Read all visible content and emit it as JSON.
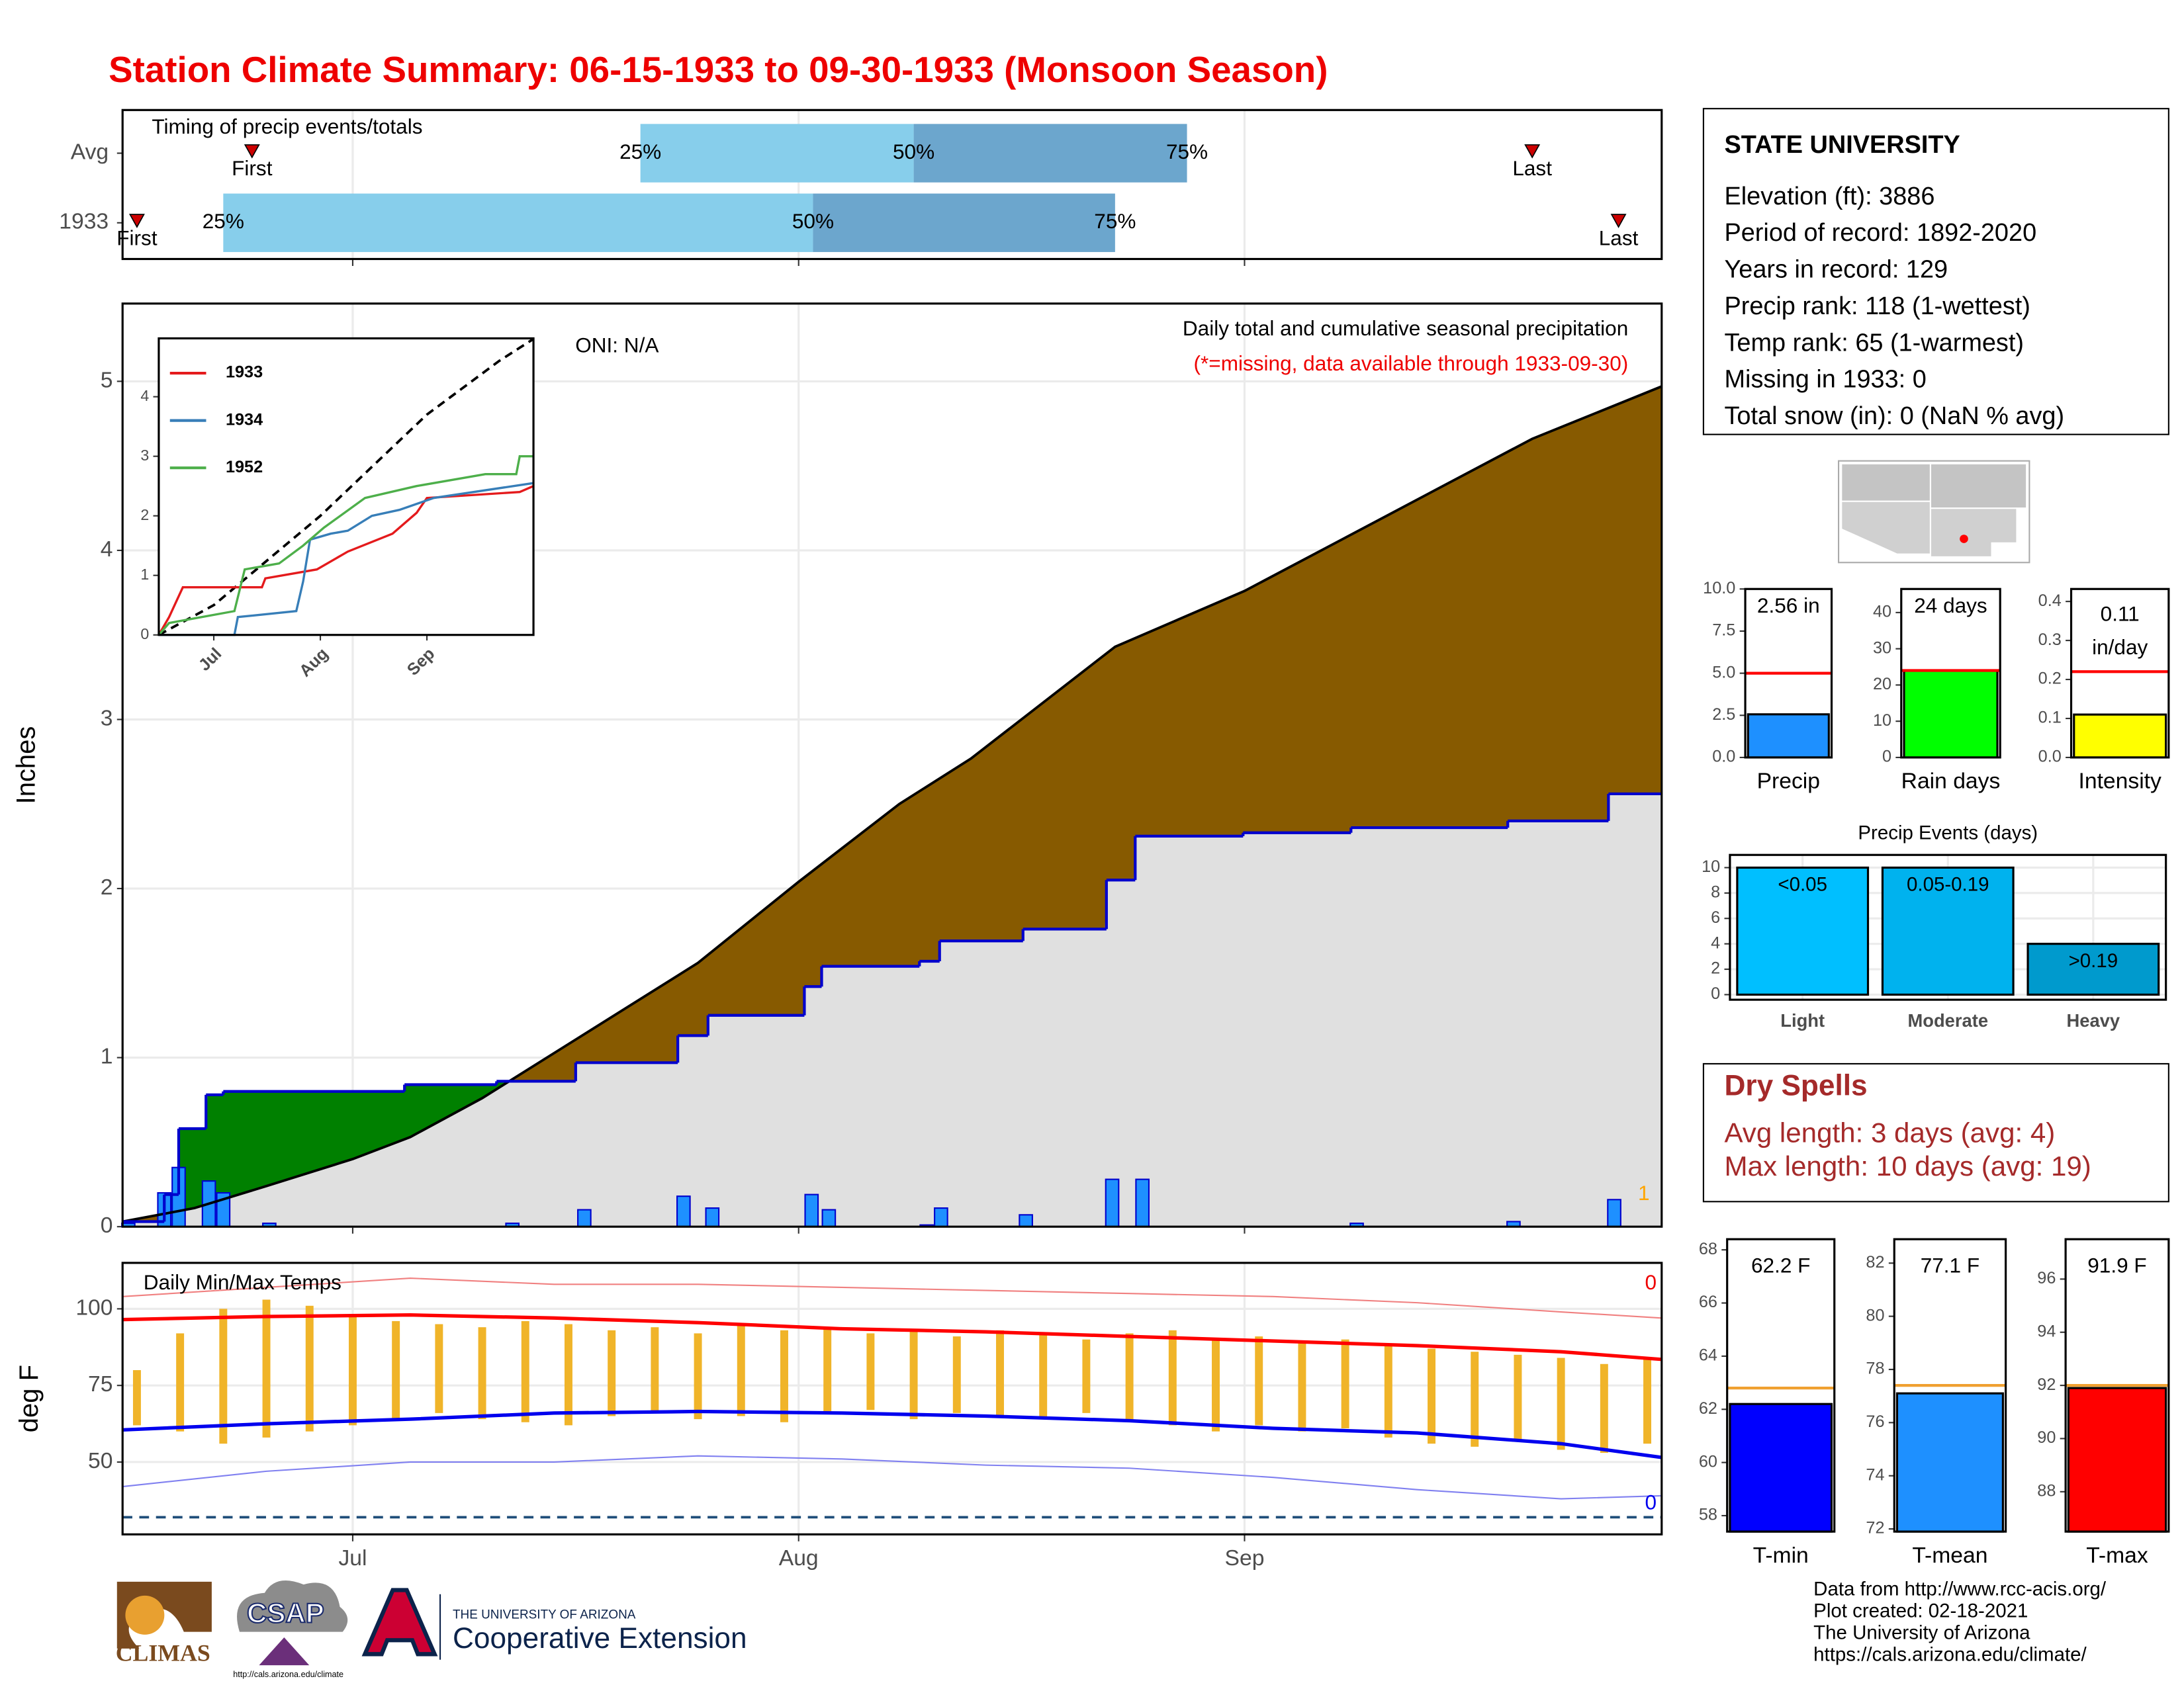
{
  "header": {
    "title": "Station Climate Summary: 06-15-1933 to 09-30-1933 (Monsoon Season)"
  },
  "station": {
    "title": "STATE UNIVERSITY",
    "lines": [
      "Elevation (ft): 3886",
      "Period of record: 1892-2020",
      "Years in record: 129",
      "Precip rank: 118 (1-wettest)",
      "Temp rank: 65 (1-warmest)",
      "Missing in 1933: 0",
      "Total snow (in): 0 (NaN % avg)"
    ]
  },
  "dry_spells": {
    "title": "Dry Spells",
    "lines": [
      "Avg length: 3 days (avg: 4)",
      "Max length: 10 days (avg: 19)"
    ]
  },
  "footer": {
    "lines": [
      "Data from http://www.rcc-acis.org/",
      "Plot created: 02-18-2021",
      "The University of Arizona",
      "https://cals.arizona.edu/climate/"
    ]
  },
  "logos": {
    "climas": "CLIMAS",
    "csap": "CSAP",
    "csap_url": "http://cals.arizona.edu/climate",
    "ua_small": "THE UNIVERSITY OF ARIZONA",
    "ua_large": "Cooperative Extension"
  },
  "chart_data": [
    {
      "type": "timing",
      "title": "Timing of precip events/totals",
      "xlim": [
        0,
        107
      ],
      "xticks": [
        16,
        47,
        78
      ],
      "marker_labels": {
        "first": "First",
        "last": "Last",
        "q25": "25%",
        "q50": "50%",
        "q75": "75%"
      },
      "rows": [
        {
          "label": "Avg",
          "first": 9,
          "q25": 36,
          "q50": 55,
          "q75": 74,
          "last": 98
        },
        {
          "label": "1933",
          "first": 1,
          "q25": 7,
          "q50": 48,
          "q75": 69,
          "last": 104
        }
      ],
      "colors": {
        "lower": "#87ceeb",
        "upper": "#6ca6cd",
        "marker": "#cc0000"
      }
    },
    {
      "type": "cumulative",
      "title": "Daily total and cumulative seasonal precipitation",
      "subtitle": "(*=missing, data available through 1933-09-30)",
      "annotation": "ONI: N/A",
      "missing_count": "1",
      "y_label": "Inches",
      "xlim": [
        0,
        107
      ],
      "xticks": [
        16,
        47,
        78
      ],
      "ylim": [
        0,
        5.46
      ],
      "yticks": [
        0,
        1,
        2,
        3,
        4,
        5
      ],
      "grid": true,
      "average": {
        "x": [
          0,
          5,
          10,
          16,
          20,
          25,
          31,
          40,
          47,
          54,
          59,
          69,
          78,
          88,
          98,
          107
        ],
        "values": [
          0.03,
          0.11,
          0.24,
          0.4,
          0.53,
          0.76,
          1.08,
          1.56,
          2.04,
          2.5,
          2.77,
          3.43,
          3.76,
          4.21,
          4.66,
          4.97
        ],
        "color": "#000000"
      },
      "observed": {
        "x": [
          0,
          2.9,
          3.9,
          5.8,
          7.0,
          19.6,
          26.0,
          31.5,
          38.6,
          40.7,
          47.4,
          48.6,
          55.4,
          56.8,
          62.6,
          68.4,
          70.4,
          77.9,
          85.4,
          96.3,
          103.3
        ],
        "values": [
          0.03,
          0.19,
          0.58,
          0.78,
          0.8,
          0.84,
          0.86,
          0.97,
          1.13,
          1.25,
          1.42,
          1.54,
          1.57,
          1.69,
          1.76,
          2.05,
          2.31,
          2.33,
          2.36,
          2.4,
          2.56
        ],
        "color": "#0000cd"
      },
      "daily": {
        "x": [
          0.4,
          2.9,
          3.9,
          6.0,
          7.0,
          10.2,
          27.1,
          32.1,
          39,
          41,
          47.9,
          49.1,
          55.9,
          56.9,
          62.8,
          68.8,
          70.9,
          85.8,
          96.7,
          103.7
        ],
        "values": [
          0.02,
          0.2,
          0.35,
          0.27,
          0.2,
          0.02,
          0.02,
          0.1,
          0.18,
          0.11,
          0.19,
          0.1,
          0.01,
          0.11,
          0.07,
          0.28,
          0.28,
          0.02,
          0.03,
          0.16
        ],
        "color": "#1e90ff"
      },
      "fill_colors": {
        "above": "#008000",
        "below": "#875a00",
        "base": "#e0e0e0"
      }
    },
    {
      "type": "line",
      "xlim": [
        0,
        109
      ],
      "xticks": [
        {
          "value": 16,
          "label": "Jul"
        },
        {
          "value": 47,
          "label": "Aug"
        },
        {
          "value": 78,
          "label": "Sep"
        }
      ],
      "ylim": [
        0,
        4.98
      ],
      "yticks": [
        0,
        1,
        2,
        3,
        4
      ],
      "legend": "top-left",
      "series": [
        {
          "name": "1933",
          "color": "#e41a1c",
          "x": [
            0,
            3,
            5,
            7,
            30,
            31,
            46,
            55,
            68,
            75,
            78,
            105,
            109
          ],
          "values": [
            0,
            0.3,
            0.55,
            0.8,
            0.8,
            0.95,
            1.1,
            1.4,
            1.7,
            2.05,
            2.3,
            2.4,
            2.5
          ]
        },
        {
          "name": "1934",
          "color": "#377eb8",
          "x": [
            0,
            22,
            23,
            40,
            42,
            44,
            50,
            55,
            62,
            70,
            80,
            109
          ],
          "values": [
            0,
            0,
            0.3,
            0.4,
            0.9,
            1.6,
            1.7,
            1.75,
            2.0,
            2.1,
            2.3,
            2.55
          ]
        },
        {
          "name": "1952",
          "color": "#4daf4a",
          "x": [
            0,
            3,
            22,
            25,
            35,
            42,
            48,
            60,
            75,
            95,
            104,
            105,
            109
          ],
          "values": [
            0,
            0.2,
            0.4,
            1.1,
            1.2,
            1.5,
            1.8,
            2.3,
            2.5,
            2.7,
            2.7,
            3.0,
            3.0
          ]
        }
      ],
      "average": {
        "x": [
          0,
          16,
          47,
          78,
          99,
          109
        ],
        "values": [
          0,
          0.5,
          2.0,
          3.7,
          4.6,
          4.97
        ],
        "color": "#000000",
        "dash": true
      }
    },
    {
      "type": "temperature",
      "title": "Daily Min/Max Temps",
      "y_label": "deg F",
      "xlim": [
        0,
        107
      ],
      "xticks": [
        {
          "value": 16,
          "label": "Jul"
        },
        {
          "value": 47,
          "label": "Aug"
        },
        {
          "value": 78,
          "label": "Sep"
        }
      ],
      "ylim": [
        26.4,
        115
      ],
      "yticks": [
        50,
        75,
        100
      ],
      "grid": true,
      "high_count": "0",
      "low_count": "0",
      "freeze_line": 32,
      "freeze_color": "#1f4e79",
      "lines": [
        {
          "x": [
            0,
            10,
            20,
            30,
            40,
            50,
            60,
            70,
            80,
            90,
            100,
            107
          ],
          "values": [
            104,
            107,
            110,
            108,
            108,
            107,
            106,
            105,
            104,
            102,
            99,
            97
          ],
          "color": "#f08080",
          "width": 1
        },
        {
          "x": [
            0,
            10,
            20,
            30,
            40,
            50,
            60,
            70,
            80,
            90,
            100,
            107
          ],
          "values": [
            42,
            47,
            50,
            50,
            52,
            51,
            49,
            48,
            45,
            41,
            38,
            39
          ],
          "color": "#8080f0",
          "width": 1
        },
        {
          "x": [
            0,
            10,
            20,
            30,
            40,
            50,
            60,
            70,
            80,
            90,
            100,
            107
          ],
          "values": [
            96.5,
            97.5,
            98,
            97,
            95.5,
            93.5,
            92.5,
            91,
            89.5,
            88,
            86,
            83.5
          ],
          "color": "#ff0000",
          "width": 2.5
        },
        {
          "x": [
            0,
            10,
            20,
            30,
            40,
            50,
            60,
            70,
            80,
            90,
            100,
            107
          ],
          "values": [
            60.5,
            62.5,
            64,
            66,
            66.5,
            66,
            65,
            63.5,
            61,
            59.5,
            56,
            51.5
          ],
          "color": "#0000ee",
          "width": 2.5
        }
      ],
      "daily": {
        "x": [
          1,
          4,
          7,
          10,
          13,
          16,
          19,
          22,
          25,
          28,
          31,
          34,
          37,
          40,
          43,
          46,
          49,
          52,
          55,
          58,
          61,
          64,
          67,
          70,
          73,
          76,
          79,
          82,
          85,
          88,
          91,
          94,
          97,
          100,
          103,
          106
        ],
        "low": [
          62,
          60,
          56,
          58,
          60,
          62,
          64,
          66,
          64,
          63,
          62,
          65,
          66,
          64,
          65,
          63,
          66,
          67,
          64,
          66,
          65,
          64,
          66,
          63,
          62,
          60,
          62,
          60,
          61,
          58,
          56,
          55,
          57,
          54,
          53,
          56
        ],
        "high": [
          80,
          92,
          100,
          103,
          101,
          98,
          96,
          95,
          94,
          96,
          95,
          93,
          94,
          92,
          95,
          93,
          94,
          92,
          93,
          91,
          93,
          92,
          90,
          92,
          93,
          90,
          91,
          89,
          90,
          88,
          87,
          86,
          85,
          84,
          82,
          84
        ],
        "color": "#f0b429"
      }
    },
    {
      "type": "summary-bar",
      "category": "Precip",
      "value": 2.56,
      "value_label": "2.56 in",
      "average": 5.0,
      "average_color": "#ff0000",
      "color": "#1e90ff",
      "ylim": [
        0,
        10
      ],
      "yticks": [
        {
          "value": 0,
          "label": "0.0"
        },
        2.5,
        {
          "value": 5,
          "label": "5.0"
        },
        7.5,
        {
          "value": 10,
          "label": "10.0"
        }
      ]
    },
    {
      "type": "summary-bar",
      "category": "Rain days",
      "value": 24,
      "value_label": "24 days",
      "average": 24,
      "average_color": "#ff0000",
      "color": "#00ff00",
      "ylim": [
        0,
        46.5
      ],
      "yticks": [
        0,
        10,
        20,
        30,
        40
      ]
    },
    {
      "type": "summary-bar",
      "category": "Intensity",
      "value": 0.11,
      "value_label": "0.11",
      "unit_label": "in/day",
      "average": 0.22,
      "average_color": "#ff0000",
      "color": "#ffff00",
      "ylim": [
        0,
        0.432
      ],
      "yticks": [
        {
          "value": 0,
          "label": "0.0"
        },
        0.1,
        0.2,
        0.3,
        0.4
      ]
    },
    {
      "type": "bar",
      "title": "Precip Events (days)",
      "categories": [
        "Light",
        "Moderate",
        "Heavy"
      ],
      "bin_labels": [
        "<0.05",
        "0.05-0.19",
        ">0.19"
      ],
      "values": [
        10,
        10,
        4
      ],
      "colors": [
        "#00bfff",
        "#00b2ee",
        "#009acd"
      ],
      "ylim": [
        -0.4,
        11
      ],
      "yticks": [
        0,
        2,
        4,
        6,
        8,
        10
      ],
      "grid": true
    },
    {
      "type": "summary-bar",
      "category": "T-min",
      "value": 62.2,
      "value_label": "62.2 F",
      "average": 62.8,
      "average_color": "#f0a030",
      "color": "#0000ff",
      "ylim": [
        57.4,
        68.4
      ],
      "yticks": [
        58,
        60,
        62,
        64,
        66,
        68
      ]
    },
    {
      "type": "summary-bar",
      "category": "T-mean",
      "value": 77.1,
      "value_label": "77.1 F",
      "average": 77.4,
      "average_color": "#f0a030",
      "color": "#1e90ff",
      "ylim": [
        71.9,
        82.9
      ],
      "yticks": [
        72,
        74,
        76,
        78,
        80,
        82
      ]
    },
    {
      "type": "summary-bar",
      "category": "T-max",
      "value": 91.9,
      "value_label": "91.9 F",
      "average": 92.0,
      "average_color": "#f0a030",
      "color": "#ff0000",
      "ylim": [
        86.5,
        97.5
      ],
      "yticks": [
        88,
        90,
        92,
        94,
        96
      ]
    }
  ]
}
